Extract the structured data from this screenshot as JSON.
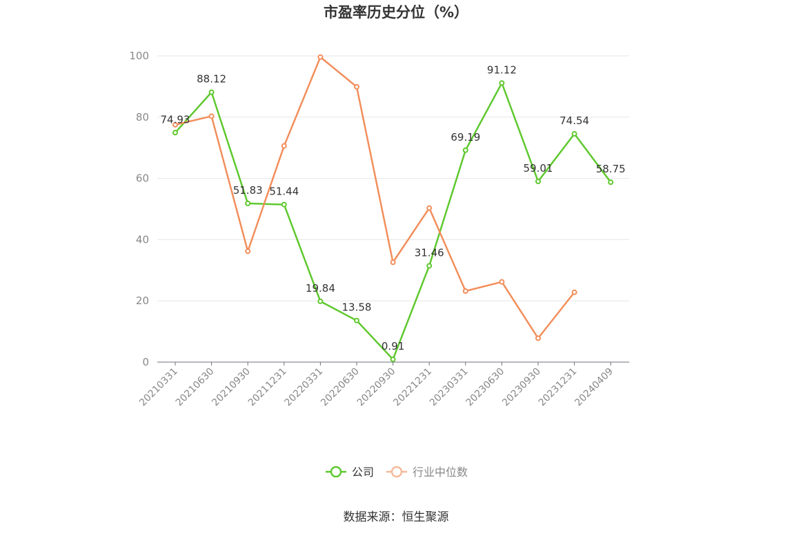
{
  "chart_data": {
    "type": "line",
    "title": "市盈率历史分位（%）",
    "source": "数据来源：恒生聚源",
    "x": [
      "20210331",
      "20210630",
      "20210930",
      "20211231",
      "20220331",
      "20220630",
      "20220930",
      "20221231",
      "20230331",
      "20230630",
      "20230930",
      "20231231",
      "20240409"
    ],
    "ylim": [
      0,
      100
    ],
    "yticks": [
      0,
      20,
      40,
      60,
      80,
      100
    ],
    "grid": true,
    "legend_position": "bottom-center",
    "series": [
      {
        "name": "公司",
        "color": "#5ec82e",
        "labels_shown": true,
        "values": [
          74.93,
          88.12,
          51.83,
          51.44,
          19.84,
          13.58,
          0.91,
          31.46,
          69.19,
          91.12,
          59.01,
          74.54,
          58.75
        ]
      },
      {
        "name": "行业中位数",
        "color": "#f28e5b",
        "labels_shown": false,
        "values": [
          77.5,
          80.3,
          36.2,
          70.6,
          99.6,
          89.9,
          32.6,
          50.3,
          23.2,
          26.2,
          7.8,
          22.8,
          null
        ]
      }
    ]
  }
}
